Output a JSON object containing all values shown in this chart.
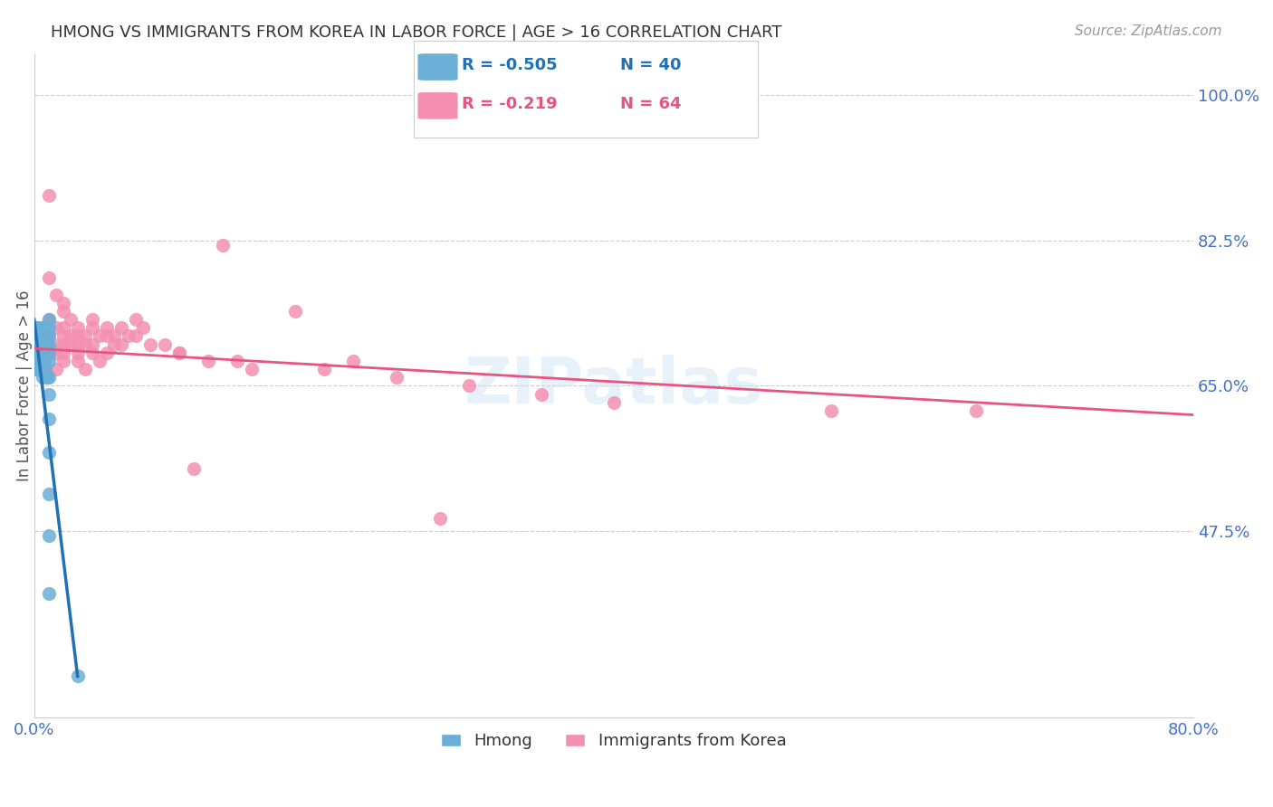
{
  "title": "HMONG VS IMMIGRANTS FROM KOREA IN LABOR FORCE | AGE > 16 CORRELATION CHART",
  "source": "Source: ZipAtlas.com",
  "xlabel_bottom": "",
  "ylabel": "In Labor Force | Age > 16",
  "xlabel_labels": [
    "0.0%",
    "80.0%"
  ],
  "ytick_labels": [
    "100.0%",
    "82.5%",
    "65.0%",
    "47.5%"
  ],
  "ytick_values": [
    1.0,
    0.825,
    0.65,
    0.475
  ],
  "legend_label1": "Hmong",
  "legend_label2": "Immigrants from Korea",
  "legend_R1": "R = -0.505",
  "legend_N1": "N = 40",
  "legend_R2": "R = -0.219",
  "legend_N2": "N = 64",
  "color_hmong": "#6baed6",
  "color_korea": "#f48fb1",
  "color_hmong_line": "#2171b5",
  "color_korea_line": "#e75480",
  "color_axis_labels": "#4472c4",
  "color_title": "#333333",
  "color_source": "#999999",
  "background_color": "#ffffff",
  "grid_color": "#cccccc",
  "xlim": [
    0.0,
    0.8
  ],
  "ylim": [
    0.25,
    1.05
  ],
  "hmong_x": [
    0.001,
    0.001,
    0.001,
    0.001,
    0.002,
    0.002,
    0.002,
    0.002,
    0.002,
    0.003,
    0.003,
    0.003,
    0.004,
    0.004,
    0.005,
    0.005,
    0.005,
    0.006,
    0.006,
    0.006,
    0.007,
    0.007,
    0.008,
    0.008,
    0.009,
    0.009,
    0.01,
    0.01,
    0.01,
    0.01,
    0.01,
    0.01,
    0.01,
    0.01,
    0.01,
    0.01,
    0.01,
    0.01,
    0.01,
    0.03
  ],
  "hmong_y": [
    0.72,
    0.7,
    0.68,
    0.67,
    0.72,
    0.71,
    0.69,
    0.68,
    0.67,
    0.7,
    0.69,
    0.67,
    0.71,
    0.69,
    0.72,
    0.7,
    0.67,
    0.71,
    0.69,
    0.66,
    0.72,
    0.68,
    0.71,
    0.67,
    0.7,
    0.66,
    0.73,
    0.72,
    0.71,
    0.7,
    0.69,
    0.68,
    0.66,
    0.64,
    0.61,
    0.57,
    0.52,
    0.47,
    0.4,
    0.3
  ],
  "hmong_line_x": [
    0.0,
    0.03
  ],
  "hmong_line_y": [
    0.73,
    0.3
  ],
  "korea_x": [
    0.01,
    0.01,
    0.01,
    0.01,
    0.01,
    0.015,
    0.015,
    0.015,
    0.015,
    0.015,
    0.02,
    0.02,
    0.02,
    0.02,
    0.02,
    0.02,
    0.02,
    0.025,
    0.025,
    0.025,
    0.03,
    0.03,
    0.03,
    0.03,
    0.03,
    0.035,
    0.035,
    0.035,
    0.04,
    0.04,
    0.04,
    0.04,
    0.045,
    0.045,
    0.05,
    0.05,
    0.05,
    0.055,
    0.055,
    0.06,
    0.06,
    0.065,
    0.07,
    0.07,
    0.075,
    0.08,
    0.09,
    0.1,
    0.1,
    0.12,
    0.14,
    0.15,
    0.2,
    0.22,
    0.25,
    0.3,
    0.35,
    0.4,
    0.55,
    0.65,
    0.11,
    0.13,
    0.18,
    0.28
  ],
  "korea_y": [
    0.88,
    0.78,
    0.73,
    0.71,
    0.69,
    0.76,
    0.72,
    0.7,
    0.69,
    0.67,
    0.75,
    0.74,
    0.72,
    0.71,
    0.7,
    0.69,
    0.68,
    0.73,
    0.71,
    0.7,
    0.72,
    0.71,
    0.7,
    0.69,
    0.68,
    0.71,
    0.7,
    0.67,
    0.73,
    0.72,
    0.7,
    0.69,
    0.71,
    0.68,
    0.72,
    0.71,
    0.69,
    0.71,
    0.7,
    0.72,
    0.7,
    0.71,
    0.73,
    0.71,
    0.72,
    0.7,
    0.7,
    0.69,
    0.69,
    0.68,
    0.68,
    0.67,
    0.67,
    0.68,
    0.66,
    0.65,
    0.64,
    0.63,
    0.62,
    0.62,
    0.55,
    0.82,
    0.74,
    0.49
  ],
  "korea_line_x": [
    0.0,
    0.8
  ],
  "korea_line_y": [
    0.695,
    0.615
  ]
}
